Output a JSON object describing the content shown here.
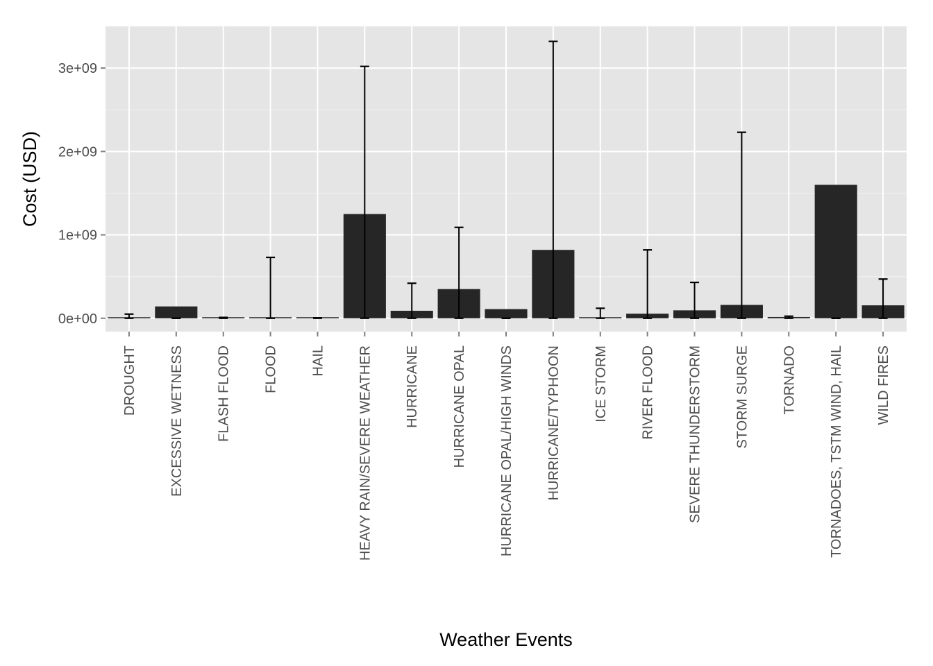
{
  "chart_data": {
    "type": "bar",
    "xlabel": "Weather Events",
    "ylabel": "Cost (USD)",
    "ylim": [
      -160000000,
      3500000000
    ],
    "yticks": [
      0,
      1000000000,
      2000000000,
      3000000000
    ],
    "ytick_labels": [
      "0e+00",
      "1e+09",
      "2e+09",
      "3e+09"
    ],
    "grid": true,
    "categories": [
      "DROUGHT",
      "EXCESSIVE WETNESS",
      "FLASH FLOOD",
      "FLOOD",
      "HAIL",
      "HEAVY RAIN/SEVERE WEATHER",
      "HURRICANE",
      "HURRICANE OPAL",
      "HURRICANE OPAL/HIGH WINDS",
      "HURRICANE/TYPHOON",
      "ICE STORM",
      "RIVER FLOOD",
      "SEVERE THUNDERSTORM",
      "STORM SURGE",
      "TORNADO",
      "TORNADOES, TSTM WIND, HAIL",
      "WILD FIRES"
    ],
    "values": [
      5000000,
      142000000,
      5000000,
      3000000,
      3000000,
      1250000000,
      90000000,
      350000000,
      110000000,
      820000000,
      5000000,
      55000000,
      95000000,
      160000000,
      15000000,
      1600000000,
      155000000
    ],
    "error_bars": [
      {
        "low": 0,
        "high": 50000000
      },
      {
        "low": 0,
        "high": 0
      },
      {
        "low": 0,
        "high": 10000000
      },
      {
        "low": 0,
        "high": 730000000
      },
      {
        "low": 0,
        "high": 5000000
      },
      {
        "low": 0,
        "high": 3020000000
      },
      {
        "low": 0,
        "high": 420000000
      },
      {
        "low": 0,
        "high": 1090000000
      },
      {
        "low": 0,
        "high": 0
      },
      {
        "low": 0,
        "high": 3320000000
      },
      {
        "low": 0,
        "high": 120000000
      },
      {
        "low": 0,
        "high": 820000000
      },
      {
        "low": 0,
        "high": 430000000
      },
      {
        "low": 0,
        "high": 2230000000
      },
      {
        "low": 0,
        "high": 25000000
      },
      {
        "low": 0,
        "high": 0
      },
      {
        "low": 0,
        "high": 470000000
      }
    ],
    "colors": {
      "panel": "#e5e5e5",
      "grid_major": "#ffffff",
      "grid_minor": "#f2f2f2",
      "bar": "#262626",
      "error_bar": "#000000",
      "tick": "#7f7f7f"
    }
  }
}
